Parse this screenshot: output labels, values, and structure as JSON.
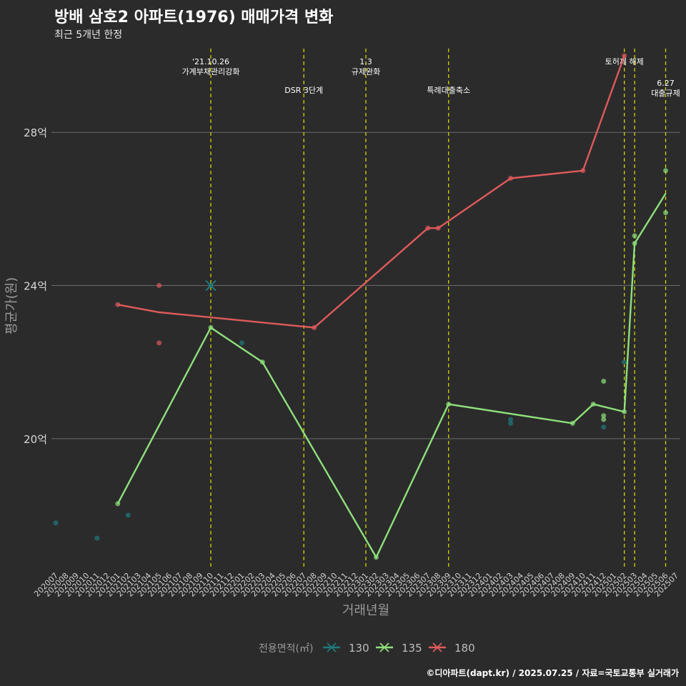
{
  "title": "방배 삼호2 아파트(1976) 매매가격 변화",
  "subtitle": "최근 5개년 한정",
  "caption": "©디아파트(dapt.kr) / 2025.07.25 / 자료=국토교통부 실거래가",
  "chart_data": {
    "type": "line",
    "xlabel": "거래년월",
    "ylabel": "평균가(원)",
    "x_categories": [
      "202007",
      "202008",
      "202009",
      "202010",
      "202011",
      "202012",
      "202101",
      "202102",
      "202103",
      "202104",
      "202105",
      "202106",
      "202107",
      "202108",
      "202109",
      "202110",
      "202111",
      "202112",
      "202201",
      "202202",
      "202203",
      "202204",
      "202205",
      "202206",
      "202207",
      "202208",
      "202209",
      "202210",
      "202211",
      "202212",
      "202301",
      "202302",
      "202303",
      "202304",
      "202305",
      "202306",
      "202307",
      "202308",
      "202309",
      "202310",
      "202311",
      "202312",
      "202401",
      "202402",
      "202403",
      "202404",
      "202405",
      "202406",
      "202407",
      "202408",
      "202409",
      "202410",
      "202411",
      "202412",
      "202501",
      "202502",
      "202503",
      "202504",
      "202505",
      "202506",
      "202507"
    ],
    "ylim": [
      16.6,
      30.3
    ],
    "y_ticks": [
      20,
      24,
      28
    ],
    "y_tick_labels": [
      "20억",
      "24억",
      "28억"
    ],
    "grid": "horizontal major lines",
    "legend": {
      "title": "전용면적(㎡)",
      "position": "bottom",
      "entries": [
        "130",
        "135",
        "180"
      ]
    },
    "colors": {
      "130": "#1f7a7a",
      "135": "#8ee07a",
      "180": "#e05a5a",
      "event_line": "#d4d400"
    },
    "events": [
      {
        "x": "202110",
        "label": "'21.10.26\n가계부채관리강화",
        "tier": 0
      },
      {
        "x": "202207",
        "label": "DSR 3단계",
        "tier": 1
      },
      {
        "x": "202301",
        "label": "1.3\n규제완화",
        "tier": 0
      },
      {
        "x": "202309",
        "label": "특례대출축소",
        "tier": 1
      },
      {
        "x": "202502",
        "label": "토허제 해제",
        "tier": 0
      },
      {
        "x": "202503",
        "label": "",
        "tier": 0
      },
      {
        "x": "202506",
        "label": "6.27\n대출규제",
        "tier": 2
      }
    ],
    "series": [
      {
        "name": "130",
        "line": [],
        "points": [
          [
            "202007",
            17.8
          ],
          [
            "202011",
            17.4
          ],
          [
            "202102",
            18.0
          ],
          [
            "202110",
            24.0
          ],
          [
            "202201",
            22.5
          ],
          [
            "202403",
            20.4
          ],
          [
            "202403",
            20.5
          ],
          [
            "202412",
            20.3
          ],
          [
            "202502",
            22.0
          ]
        ]
      },
      {
        "name": "135",
        "line": [
          [
            "202101",
            18.3
          ],
          [
            "202110",
            22.9
          ],
          [
            "202203",
            22.0
          ],
          [
            "202302",
            16.9
          ],
          [
            "202309",
            20.9
          ],
          [
            "202409",
            20.4
          ],
          [
            "202411",
            20.9
          ],
          [
            "202502",
            20.7
          ],
          [
            "202503",
            25.1
          ],
          [
            "202506",
            26.4
          ]
        ],
        "points": [
          [
            "202101",
            18.3
          ],
          [
            "202110",
            22.9
          ],
          [
            "202203",
            22.0
          ],
          [
            "202302",
            16.9
          ],
          [
            "202309",
            20.9
          ],
          [
            "202409",
            20.4
          ],
          [
            "202411",
            20.9
          ],
          [
            "202412",
            20.5
          ],
          [
            "202412",
            20.6
          ],
          [
            "202412",
            21.5
          ],
          [
            "202502",
            20.7
          ],
          [
            "202503",
            25.1
          ],
          [
            "202503",
            25.3
          ],
          [
            "202506",
            25.9
          ],
          [
            "202506",
            27.0
          ]
        ]
      },
      {
        "name": "180",
        "line": [
          [
            "202101",
            23.5
          ],
          [
            "202105",
            23.3
          ],
          [
            "202208",
            22.9
          ],
          [
            "202307",
            25.5
          ],
          [
            "202308",
            25.5
          ],
          [
            "202403",
            26.8
          ],
          [
            "202410",
            27.0
          ],
          [
            "202502",
            30.0
          ]
        ],
        "points": [
          [
            "202101",
            23.5
          ],
          [
            "202105",
            24.0
          ],
          [
            "202105",
            22.5
          ],
          [
            "202208",
            22.9
          ],
          [
            "202307",
            25.5
          ],
          [
            "202308",
            25.5
          ],
          [
            "202403",
            26.8
          ],
          [
            "202410",
            27.0
          ],
          [
            "202502",
            30.0
          ]
        ]
      }
    ]
  }
}
